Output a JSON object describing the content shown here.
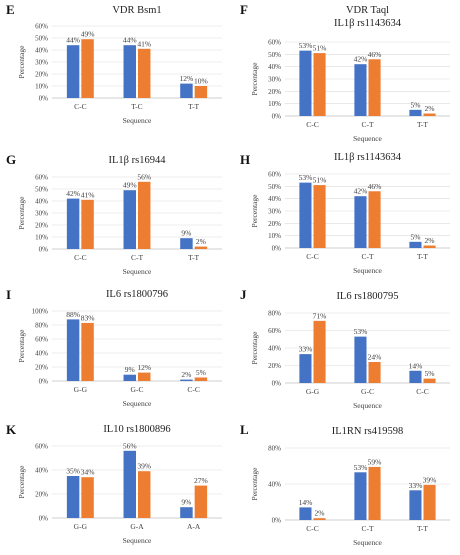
{
  "colors": {
    "series1": "#4472c4",
    "series2": "#ed7d31",
    "axis": "#bfbfbf",
    "grid": "#d9d9d9",
    "text": "#404040"
  },
  "chart_data": [
    {
      "letter": "E",
      "title": "VDR Bsm1",
      "type": "bar",
      "xlabel": "Sequence",
      "ylabel": "Percentage",
      "categories": [
        "C-C",
        "T-C",
        "T-T"
      ],
      "yticks": [
        "0%",
        "10%",
        "20%",
        "30%",
        "40%",
        "50%",
        "60%"
      ],
      "ylim": [
        0,
        60
      ],
      "grid": true,
      "series": [
        {
          "values": [
            44,
            44,
            12
          ],
          "labels": [
            "44%",
            "44%",
            "12%"
          ]
        },
        {
          "values": [
            49,
            41,
            10
          ],
          "labels": [
            "49%",
            "41%",
            "10%"
          ]
        }
      ]
    },
    {
      "letter": "F",
      "title": "VDR Taql",
      "subtitle": "IL1β rs1143634",
      "type": "bar",
      "xlabel": "Sequence",
      "ylabel": "Percentage",
      "categories": [
        "C-C",
        "C-T",
        "T-T"
      ],
      "yticks": [
        "0%",
        "10%",
        "20%",
        "30%",
        "40%",
        "50%",
        "60%"
      ],
      "ylim": [
        0,
        60
      ],
      "grid": true,
      "series": [
        {
          "values": [
            53,
            42,
            5
          ],
          "labels": [
            "53%",
            "42%",
            "5%"
          ]
        },
        {
          "values": [
            51,
            46,
            2
          ],
          "labels": [
            "51%",
            "46%",
            "2%"
          ]
        }
      ]
    },
    {
      "letter": "G",
      "title": "IL1β rs16944",
      "type": "bar",
      "xlabel": "Sequence",
      "ylabel": "Percentage",
      "categories": [
        "C-C",
        "C-T",
        "T-T"
      ],
      "yticks": [
        "0%",
        "10%",
        "20%",
        "30%",
        "40%",
        "50%",
        "60%"
      ],
      "ylim": [
        0,
        60
      ],
      "grid": true,
      "series": [
        {
          "values": [
            42,
            49,
            9
          ],
          "labels": [
            "42%",
            "49%",
            "9%"
          ]
        },
        {
          "values": [
            41,
            56,
            2
          ],
          "labels": [
            "41%",
            "56%",
            "2%"
          ]
        }
      ]
    },
    {
      "letter": "H",
      "title": "IL1β rs1143634",
      "type": "bar",
      "xlabel": "Sequence",
      "ylabel": "Percentage",
      "categories": [
        "C-C",
        "C-T",
        "T-T"
      ],
      "yticks": [
        "0%",
        "10%",
        "20%",
        "30%",
        "40%",
        "50%",
        "60%"
      ],
      "ylim": [
        0,
        60
      ],
      "grid": true,
      "series": [
        {
          "values": [
            53,
            42,
            5
          ],
          "labels": [
            "53%",
            "42%",
            "5%"
          ]
        },
        {
          "values": [
            51,
            46,
            2
          ],
          "labels": [
            "51%",
            "46%",
            "2%"
          ]
        }
      ]
    },
    {
      "letter": "I",
      "title": "IL6 rs1800796",
      "type": "bar",
      "xlabel": "Sequence",
      "ylabel": "Percentage",
      "categories": [
        "G-G",
        "G-C",
        "C-C"
      ],
      "yticks": [
        "0%",
        "20%",
        "40%",
        "60%",
        "80%",
        "100%"
      ],
      "ylim": [
        0,
        100
      ],
      "grid": true,
      "series": [
        {
          "values": [
            88,
            9,
            2
          ],
          "labels": [
            "88%",
            "9%",
            "2%"
          ]
        },
        {
          "values": [
            83,
            12,
            5
          ],
          "labels": [
            "83%",
            "12%",
            "5%"
          ]
        }
      ]
    },
    {
      "letter": "J",
      "title": "IL6 rs1800795",
      "type": "bar",
      "xlabel": "Sequence",
      "ylabel": "Percentage",
      "categories": [
        "G-G",
        "G-C",
        "C-C"
      ],
      "yticks": [
        "0%",
        "20%",
        "40%",
        "60%",
        "80%"
      ],
      "ylim": [
        0,
        80
      ],
      "grid": true,
      "series": [
        {
          "values": [
            33,
            53,
            14
          ],
          "labels": [
            "33%",
            "53%",
            "14%"
          ]
        },
        {
          "values": [
            71,
            24,
            5
          ],
          "labels": [
            "71%",
            "24%",
            "5%"
          ]
        }
      ]
    },
    {
      "letter": "K",
      "title": "IL10 rs1800896",
      "type": "bar",
      "xlabel": "Sequence",
      "ylabel": "Percentage",
      "categories": [
        "G-G",
        "G-A",
        "A-A"
      ],
      "yticks": [
        "0%",
        "20%",
        "40%",
        "60%"
      ],
      "ylim": [
        0,
        60
      ],
      "grid": true,
      "series": [
        {
          "values": [
            35,
            56,
            9
          ],
          "labels": [
            "35%",
            "56%",
            "9%"
          ]
        },
        {
          "values": [
            34,
            39,
            27
          ],
          "labels": [
            "34%",
            "39%",
            "27%"
          ]
        }
      ]
    },
    {
      "letter": "L",
      "title": "IL1RN rs419598",
      "type": "bar",
      "xlabel": "Sequence",
      "ylabel": "Percentage",
      "categories": [
        "C-C",
        "C-T",
        "T-T"
      ],
      "yticks": [
        "0%",
        "40%",
        "80%"
      ],
      "ylim": [
        0,
        80
      ],
      "grid": true,
      "series": [
        {
          "values": [
            14,
            53,
            33
          ],
          "labels": [
            "14%",
            "53%",
            "33%"
          ]
        },
        {
          "values": [
            2,
            59,
            39
          ],
          "labels": [
            "2%",
            "59%",
            "39%"
          ]
        }
      ]
    }
  ]
}
